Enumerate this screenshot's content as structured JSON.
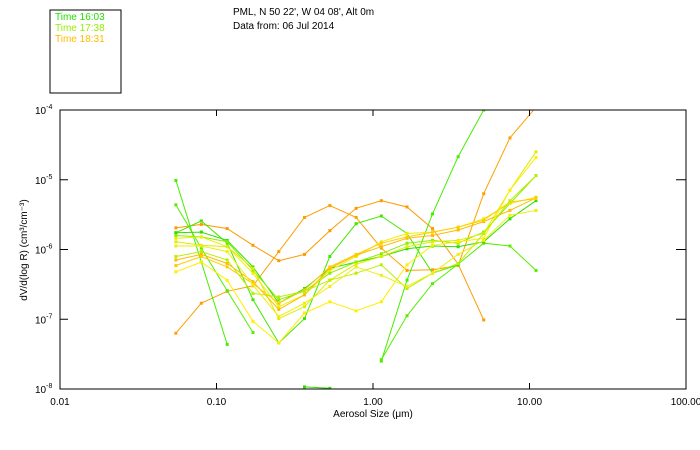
{
  "header": {
    "location": "PML, N 50 22', W 04 08', Alt 0m",
    "date": "Data from: 06 Jul 2014"
  },
  "legend": [
    {
      "label": "Time 16:03",
      "color": "#22dd00"
    },
    {
      "label": "Time 17:38",
      "color": "#99ee00"
    },
    {
      "label": "Time 18:31",
      "color": "#ffbb00"
    }
  ],
  "chart_data": {
    "type": "line",
    "xlabel": "Aerosol Size (μm)",
    "ylabel": "dV/d(log R) (cm³/cm⁻³)",
    "xscale": "log",
    "yscale": "log",
    "xlim": [
      0.01,
      100
    ],
    "ylim_log10": [
      -8,
      -4
    ],
    "x_tick_labels": [
      "0.01",
      "0.10",
      "1.00",
      "10.00",
      "100.00"
    ],
    "y_tick_exponents": [
      "-4",
      "-5",
      "-6",
      "-7",
      "-8"
    ],
    "x": [
      0.055,
      0.08,
      0.117,
      0.171,
      0.25,
      0.365,
      0.53,
      0.78,
      1.13,
      1.65,
      2.4,
      3.5,
      5.1,
      7.5,
      11.0
    ],
    "series_y_unit": "log10 of dV/d(log R)",
    "series": [
      {
        "color": "#ff9900",
        "y_log10": [
          -5.69,
          -5.64,
          -5.7,
          -5.94,
          -6.16,
          -6.07,
          -5.73,
          -5.41,
          -5.3,
          -5.39,
          -5.7,
          -6.21,
          -7.01,
          null,
          null
        ]
      },
      {
        "color": "#ffa000",
        "y_log10": [
          -7.2,
          -6.77,
          -6.6,
          -6.52,
          -6.03,
          -5.54,
          -5.37,
          -5.54,
          -5.98,
          -6.3,
          -6.29,
          -6.23,
          -5.2,
          -4.4,
          -3.96
        ]
      },
      {
        "color": "#44ee00",
        "y_log10": [
          -5.01,
          -6.18,
          -7.36,
          null,
          null,
          null,
          null,
          null,
          null,
          null,
          null,
          null,
          null,
          null,
          null
        ]
      },
      {
        "color": "#55ee00",
        "y_log10": [
          -5.36,
          -5.98,
          -6.59,
          -7.19,
          null,
          null,
          null,
          null,
          null,
          null,
          null,
          null,
          null,
          null,
          null
        ]
      },
      {
        "color": "#44e600",
        "y_log10": [
          -5.76,
          -5.59,
          -5.91,
          -6.72,
          -7.34,
          -6.99,
          -6.1,
          -5.63,
          -5.52,
          -5.77,
          -6.34,
          -6.22,
          null,
          null,
          null
        ]
      },
      {
        "color": "#44ee00",
        "y_log10": [
          null,
          null,
          null,
          null,
          null,
          null,
          null,
          null,
          -7.6,
          -6.44,
          -5.49,
          -4.67,
          -4.0,
          null,
          null
        ]
      },
      {
        "color": "#55ee00",
        "y_log10": [
          null,
          null,
          null,
          null,
          null,
          null,
          null,
          null,
          -7.58,
          -6.95,
          -6.49,
          -6.21,
          -5.91,
          -5.95,
          -6.3
        ]
      },
      {
        "color": "#33dd00",
        "y_log10": [
          null,
          null,
          null,
          null,
          null,
          -7.97,
          -7.99,
          null,
          null,
          null,
          null,
          null,
          null,
          null,
          null
        ]
      },
      {
        "color": "#33dd00",
        "y_log10": [
          -5.76,
          -5.75,
          -5.87,
          -6.25,
          -6.77,
          -6.56,
          -6.27,
          -6.18,
          -6.1,
          -5.99,
          -5.95,
          -5.96,
          -5.89,
          -5.56,
          -5.3
        ]
      },
      {
        "color": "#88ee00",
        "y_log10": [
          -5.8,
          -5.82,
          -5.89,
          -6.3,
          -6.72,
          -6.6,
          -6.34,
          -6.18,
          -6.06,
          -5.91,
          -5.87,
          -5.91,
          -5.75,
          -5.34,
          -4.94
        ]
      },
      {
        "color": "#eeee00",
        "y_log10": [
          -5.84,
          -5.82,
          -5.96,
          -6.34,
          -6.82,
          -6.65,
          -6.3,
          -6.1,
          -5.89,
          -5.77,
          -5.75,
          -5.68,
          -5.56,
          -5.34,
          -5.25
        ]
      },
      {
        "color": "#ddee00",
        "y_log10": [
          -5.89,
          -5.94,
          -5.96,
          -6.27,
          -6.99,
          -6.82,
          -6.44,
          -6.21,
          -6.1,
          -5.96,
          -5.89,
          -5.87,
          -5.77,
          -5.15,
          -4.6
        ]
      },
      {
        "color": "#ffbb00",
        "y_log10": [
          -6.15,
          -6.07,
          -6.2,
          -6.46,
          -6.86,
          -6.65,
          -6.27,
          -6.08,
          -5.96,
          -5.84,
          -5.8,
          -5.72,
          -5.6,
          -5.44,
          -5.26
        ]
      },
      {
        "color": "#ffcc00",
        "y_log10": [
          -6.23,
          -6.1,
          -6.25,
          -6.49,
          -6.77,
          -6.58,
          -6.25,
          -6.07,
          -5.91,
          -5.82,
          -5.75,
          -5.68,
          -5.58,
          -5.32,
          -5.27
        ]
      },
      {
        "color": "#ffee00",
        "y_log10": [
          -6.32,
          -6.18,
          -6.44,
          -7.03,
          -7.34,
          -6.91,
          -6.75,
          -6.88,
          -6.75,
          -6.22,
          -5.94,
          -5.89,
          -5.84,
          -5.15,
          -4.68
        ]
      },
      {
        "color": "#bbee00",
        "y_log10": [
          -6.1,
          -6.03,
          -6.15,
          -6.63,
          -6.68,
          -6.6,
          -6.44,
          -6.34,
          -6.22,
          -6.56,
          -6.34,
          -6.2,
          -5.77,
          -5.3,
          -4.94
        ]
      },
      {
        "color": "#eeee11",
        "y_log10": [
          -5.95,
          -5.95,
          -6.03,
          -6.51,
          -6.96,
          -6.77,
          -6.53,
          -6.25,
          -6.37,
          -6.53,
          -6.34,
          -6.07,
          -5.87,
          -5.51,
          -5.44
        ]
      }
    ]
  }
}
